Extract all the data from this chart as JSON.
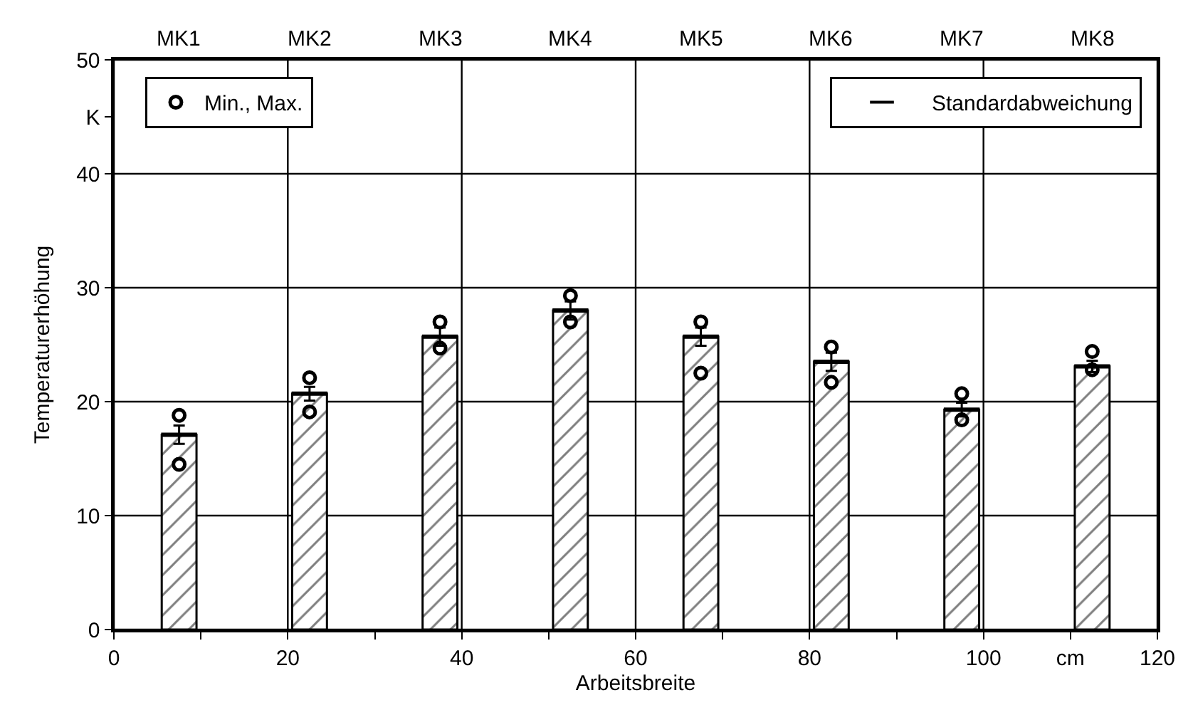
{
  "chart_data": {
    "type": "bar",
    "xlabel": "Arbeitsbreite",
    "ylabel": "Temperaturerhöhung",
    "x": [
      7.5,
      22.5,
      37.5,
      52.5,
      67.5,
      82.5,
      97.5,
      112.5
    ],
    "series": [
      {
        "color": "#000000",
        "values": [
          17.1,
          20.7,
          25.7,
          28.0,
          25.7,
          23.5,
          19.3,
          23.1
        ]
      },
      {
        "name": "Min., Max.",
        "type": "scatter",
        "color": "#000000",
        "marker": "circle",
        "x": [
          7.5,
          7.5,
          22.5,
          22.5,
          37.5,
          37.5,
          52.5,
          52.5,
          67.5,
          67.5,
          82.5,
          82.5,
          97.5,
          97.5,
          112.5,
          112.5
        ],
        "values": [
          18.8,
          14.5,
          22.1,
          19.1,
          27.0,
          24.7,
          29.3,
          27.0,
          27.0,
          22.5,
          24.8,
          21.7,
          20.7,
          18.4,
          24.4,
          22.8
        ]
      },
      {
        "name": "Standardabweichung",
        "type": "scatter",
        "color": "#000000",
        "marker": "cross",
        "values": [
          17.1,
          20.7,
          25.7,
          28.0,
          25.7,
          23.5,
          19.3,
          23.1
        ],
        "errors": [
          0.8,
          0.6,
          0.8,
          0.8,
          0.8,
          0.8,
          0.6,
          0.5
        ]
      }
    ],
    "xlim": [
      0,
      120
    ],
    "xticks": [
      0,
      {
        "value": 10,
        "label": null
      },
      20,
      {
        "value": 30,
        "label": null
      },
      40,
      {
        "value": 50,
        "label": null
      },
      60,
      {
        "value": 70,
        "label": null
      },
      80,
      {
        "value": 90,
        "label": null
      },
      100,
      {
        "value": 110,
        "label": "cm"
      },
      120
    ],
    "annotations": [
      "MK1",
      "MK2",
      "MK3",
      "MK4",
      "MK5",
      "MK6",
      "MK7",
      "MK8"
    ],
    "ylim": [
      0,
      50
    ],
    "yticks": [
      0,
      10,
      20,
      30,
      40,
      {
        "value": 45,
        "label": "K"
      },
      50
    ],
    "grid": true,
    "legend": "top"
  }
}
